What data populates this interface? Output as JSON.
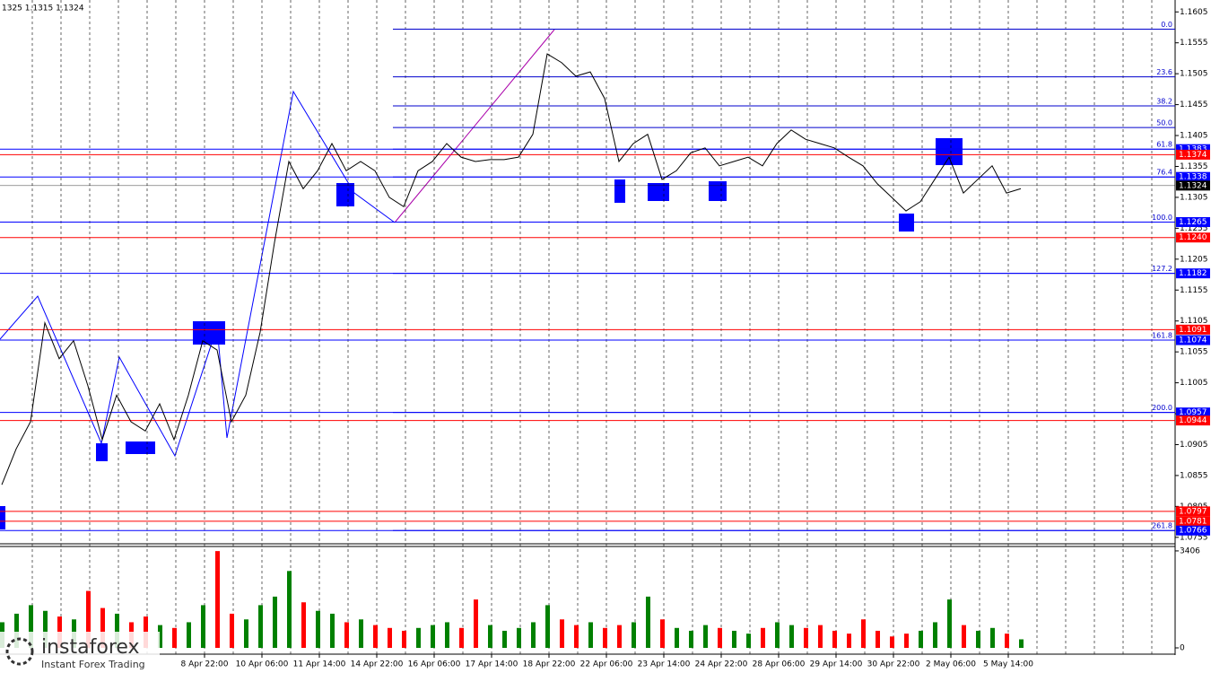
{
  "header": "1325 1.1315 1.1324",
  "watermark": {
    "brand": "instaforex",
    "tagline": "Instant Forex Trading"
  },
  "chart_data": {
    "type": "line",
    "color": "#000000",
    "ylim": [
      1.0746,
      1.1617
    ],
    "yticks": [
      1.1605,
      1.1555,
      1.1505,
      1.1455,
      1.1405,
      1.1355,
      1.1305,
      1.1255,
      1.1205,
      1.1155,
      1.1105,
      1.1055,
      1.1005,
      1.0955,
      1.0905,
      1.0855,
      1.0805,
      1.0755
    ],
    "values": [
      1.084,
      1.0898,
      1.0942,
      1.1102,
      1.1044,
      1.1073,
      1.1,
      1.0913,
      1.0985,
      1.0942,
      1.0927,
      1.0971,
      1.0913,
      1.0985,
      1.1073,
      1.1058,
      1.0942,
      1.0985,
      1.1087,
      1.1232,
      1.1363,
      1.1319,
      1.1348,
      1.1392,
      1.1348,
      1.1363,
      1.1348,
      1.1305,
      1.129,
      1.1348,
      1.1363,
      1.1392,
      1.137,
      1.1363,
      1.1366,
      1.1366,
      1.137,
      1.1407,
      1.1537,
      1.1523,
      1.1501,
      1.1508,
      1.1465,
      1.1363,
      1.1392,
      1.1407,
      1.1334,
      1.1348,
      1.1377,
      1.1385,
      1.1356,
      1.1363,
      1.137,
      1.1356,
      1.1392,
      1.1414,
      1.1399,
      1.1392,
      1.1385,
      1.137,
      1.1356,
      1.1327,
      1.1305,
      1.1283,
      1.1298,
      1.1334,
      1.137,
      1.1312,
      1.1334,
      1.1356,
      1.1312,
      1.1319
    ],
    "x_labels": [
      "8 Apr 22:00",
      "10 Apr 06:00",
      "11 Apr 14:00",
      "14 Apr 22:00",
      "16 Apr 06:00",
      "17 Apr 14:00",
      "18 Apr 22:00",
      "22 Apr 06:00",
      "23 Apr 14:00",
      "24 Apr 22:00",
      "28 Apr 06:00",
      "29 Apr 14:00",
      "30 Apr 22:00",
      "2 May 06:00",
      "5 May 14:00"
    ],
    "levels": [
      {
        "price": 1.1383,
        "color": "#0000ff"
      },
      {
        "price": 1.1374,
        "color": "#ff0000"
      },
      {
        "price": 1.1338,
        "color": "#0000ff"
      },
      {
        "price": 1.1324,
        "color": "#000000"
      },
      {
        "price": 1.1265,
        "color": "#0000ff"
      },
      {
        "price": {
          "value": 1.124,
          "label": "1.1240"
        },
        "color": "#ff0000"
      },
      {
        "price": 1.1182,
        "color": "#0000ff"
      },
      {
        "price": 1.1091,
        "color": "#ff0000"
      },
      {
        "price": 1.1074,
        "color": "#0000ff"
      },
      {
        "price": 1.0957,
        "color": "#0000ff"
      },
      {
        "price": 1.0944,
        "color": "#ff0000"
      },
      {
        "price": 1.0797,
        "color": "#ff0000"
      },
      {
        "price": 1.0781,
        "color": "#ff0000"
      },
      {
        "price": 1.0766,
        "color": "#0000ff"
      }
    ],
    "fib_color": "#0000cd",
    "fib": [
      {
        "label": "0.0",
        "price": 1.1577
      },
      {
        "label": "23.6",
        "price": 1.15
      },
      {
        "label": "38.2",
        "price": 1.1453
      },
      {
        "label": "50.0",
        "price": 1.1418
      },
      {
        "label": "61.8",
        "price": 1.1383
      },
      {
        "label": "76.4",
        "price": 1.1338
      },
      {
        "label": "100.0",
        "price": 1.1265
      },
      {
        "label": "127.2",
        "price": 1.1182
      },
      {
        "label": "161.8",
        "price": 1.1074
      },
      {
        "label": "200.0",
        "price": 1.0957
      },
      {
        "label": "261.8",
        "price": 1.0766
      }
    ],
    "volume": {
      "up_color": "#008000",
      "down_color": "#ff0000",
      "ylim": [
        0,
        3530
      ],
      "yticks": [
        3406,
        0
      ],
      "values": [
        900,
        1200,
        1500,
        1300,
        1100,
        1000,
        2000,
        1400,
        1200,
        900,
        1100,
        800,
        700,
        900,
        1500,
        3400,
        1200,
        1000,
        1500,
        1800,
        2700,
        1600,
        1300,
        1200,
        900,
        1000,
        800,
        700,
        600,
        700,
        800,
        900,
        700,
        1700,
        800,
        600,
        700,
        900,
        1500,
        1000,
        800,
        900,
        700,
        800,
        900,
        1800,
        1000,
        700,
        600,
        800,
        700,
        600,
        500,
        700,
        900,
        800,
        700,
        800,
        600,
        500,
        1000,
        600,
        400,
        500,
        600,
        900,
        1700,
        800,
        600,
        700,
        500,
        300
      ]
    }
  }
}
